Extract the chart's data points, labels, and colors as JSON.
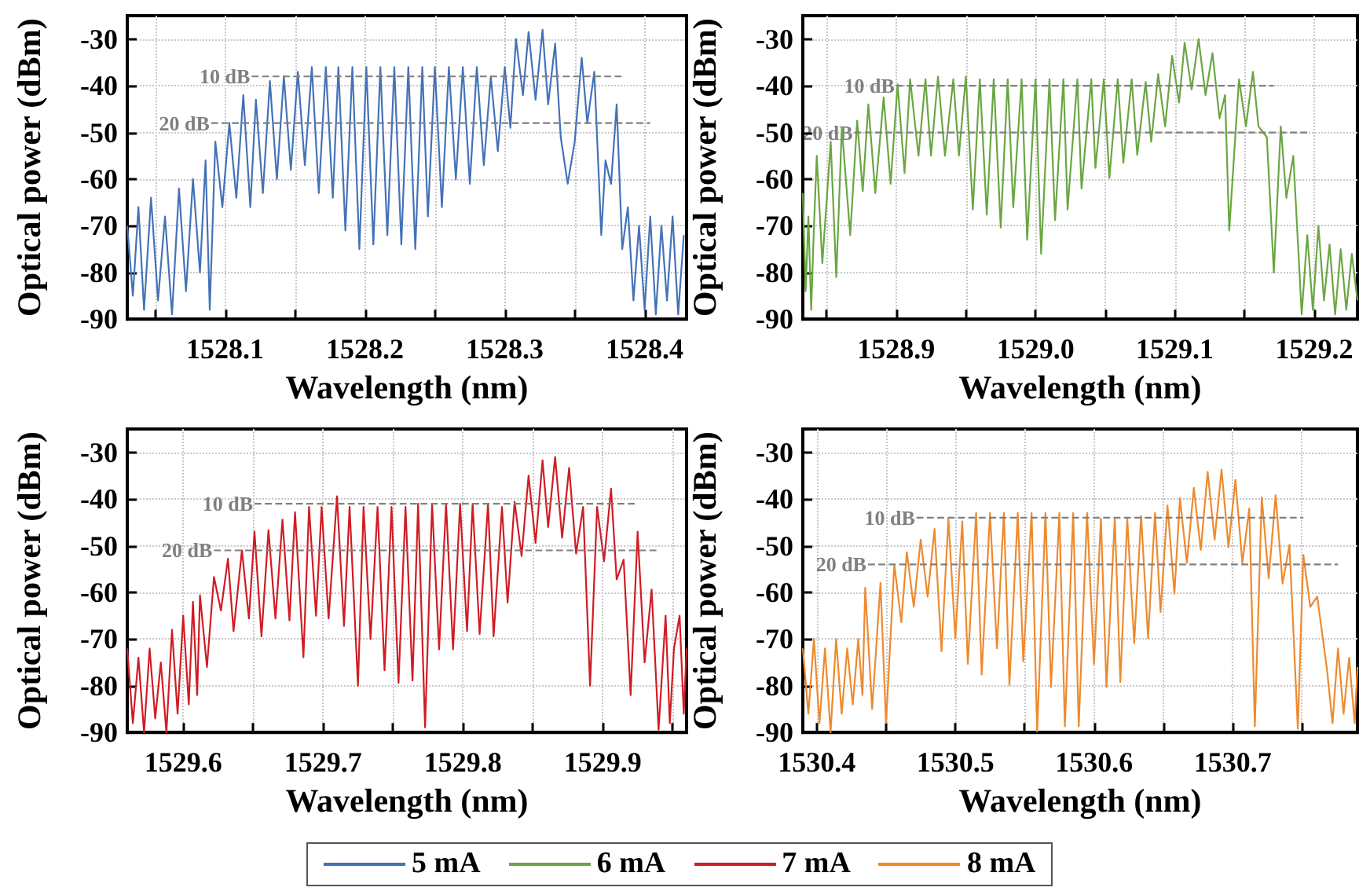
{
  "chart_data": [
    {
      "type": "line",
      "xlabel": "Wavelength (nm)",
      "ylabel": "Optical power (dBm)",
      "xlim": [
        1528.03,
        1528.43
      ],
      "xticks": [
        {
          "value": 1528.05,
          "label": null
        },
        1528.1,
        {
          "value": 1528.15,
          "label": null
        },
        1528.2,
        {
          "value": 1528.25,
          "label": null
        },
        1528.3,
        {
          "value": 1528.35,
          "label": null
        },
        1528.4
      ],
      "ylim": [
        -90,
        -25
      ],
      "yticks": [
        -90,
        -80,
        -70,
        -60,
        -50,
        -40,
        -30
      ],
      "grid": true,
      "legend": "bottom",
      "series": [
        {
          "name": "5 mA",
          "color": "#4472b8",
          "x": [
            1528.03,
            1528.034,
            1528.038,
            1528.042,
            1528.047,
            1528.052,
            1528.057,
            1528.062,
            1528.067,
            1528.072,
            1528.077,
            1528.082,
            1528.086,
            1528.089,
            1528.093,
            1528.098,
            1528.103,
            1528.108,
            1528.113,
            1528.118,
            1528.122,
            1528.127,
            1528.132,
            1528.137,
            1528.142,
            1528.147,
            1528.152,
            1528.157,
            1528.162,
            1528.167,
            1528.172,
            1528.177,
            1528.181,
            1528.186,
            1528.191,
            1528.196,
            1528.201,
            1528.206,
            1528.211,
            1528.216,
            1528.221,
            1528.226,
            1528.231,
            1528.236,
            1528.241,
            1528.245,
            1528.25,
            1528.255,
            1528.26,
            1528.265,
            1528.27,
            1528.275,
            1528.28,
            1528.285,
            1528.29,
            1528.295,
            1528.3,
            1528.304,
            1528.308,
            1528.313,
            1528.317,
            1528.322,
            1528.327,
            1528.331,
            1528.336,
            1528.34,
            1528.345,
            1528.35,
            1528.355,
            1528.359,
            1528.364,
            1528.369,
            1528.372,
            1528.376,
            1528.38,
            1528.384,
            1528.388,
            1528.392,
            1528.396,
            1528.4,
            1528.404,
            1528.408,
            1528.412,
            1528.416,
            1528.42,
            1528.424,
            1528.428
          ],
          "values": [
            -70,
            -85,
            -66,
            -88,
            -64,
            -86,
            -68,
            -89,
            -62,
            -84,
            -60,
            -80,
            -56,
            -88,
            -52,
            -66,
            -48,
            -64,
            -42,
            -66,
            -43,
            -63,
            -39,
            -60,
            -38,
            -58,
            -37,
            -57,
            -36,
            -63,
            -36,
            -64,
            -36,
            -71,
            -36,
            -75,
            -36,
            -74,
            -36,
            -72,
            -36,
            -74,
            -36,
            -75,
            -36,
            -68,
            -36,
            -66,
            -36,
            -60,
            -36,
            -61,
            -36,
            -57,
            -38,
            -54,
            -36,
            -49,
            -30,
            -42,
            -28.5,
            -43,
            -28,
            -44,
            -31,
            -51,
            -61,
            -52,
            -34,
            -48,
            -37,
            -72,
            -56,
            -61,
            -44,
            -75,
            -66,
            -86,
            -70,
            -88,
            -68,
            -89,
            -70,
            -86,
            -68,
            -89,
            -72
          ]
        },
        {
          "type": "line",
          "color": "#808080",
          "line_style": "dashed",
          "x": [
            1528.119,
            1528.385
          ],
          "values": [
            -38,
            -38
          ]
        },
        {
          "type": "line",
          "color": "#808080",
          "line_style": "dashed",
          "x": [
            1528.09,
            1528.404
          ],
          "values": [
            -48,
            -48
          ]
        }
      ],
      "annotations": [
        {
          "text": "10 dB",
          "x": 1528.119,
          "y": -38
        },
        {
          "text": "20 dB",
          "x": 1528.09,
          "y": -48
        }
      ]
    },
    {
      "type": "line",
      "xlabel": "Wavelength (nm)",
      "ylabel": "Optical power (dBm)",
      "xlim": [
        1528.833,
        1529.231
      ],
      "xticks": [
        {
          "value": 1528.85,
          "label": null
        },
        1528.9,
        {
          "value": 1528.95,
          "label": null
        },
        {
          "value": 1529,
          "label": "1529.0"
        },
        {
          "value": 1529.05,
          "label": null
        },
        1529.1,
        {
          "value": 1529.15,
          "label": null
        },
        1529.2
      ],
      "ylim": [
        -90,
        -25
      ],
      "yticks": [
        -90,
        -80,
        -70,
        -60,
        -50,
        -40,
        -30
      ],
      "grid": true,
      "legend": "bottom",
      "series": [
        {
          "name": "6 mA",
          "color": "#6aa642",
          "x": [
            1528.833,
            1528.835,
            1528.837,
            1528.839,
            1528.841,
            1528.843,
            1528.847,
            1528.853,
            1528.857,
            1528.861,
            1528.867,
            1528.872,
            1528.876,
            1528.88,
            1528.885,
            1528.891,
            1528.896,
            1528.901,
            1528.906,
            1528.91,
            1528.916,
            1528.921,
            1528.925,
            1528.93,
            1528.935,
            1528.941,
            1528.945,
            1528.95,
            1528.955,
            1528.96,
            1528.965,
            1528.97,
            1528.975,
            1528.98,
            1528.984,
            1528.99,
            1528.994,
            1529.0,
            1529.004,
            1529.01,
            1529.014,
            1529.02,
            1529.023,
            1529.03,
            1529.033,
            1529.04,
            1529.043,
            1529.049,
            1529.053,
            1529.059,
            1529.063,
            1529.069,
            1529.073,
            1529.079,
            1529.083,
            1529.088,
            1529.093,
            1529.098,
            1529.103,
            1529.107,
            1529.112,
            1529.117,
            1529.122,
            1529.127,
            1529.132,
            1529.136,
            1529.139,
            1529.146,
            1529.151,
            1529.156,
            1529.16,
            1529.166,
            1529.171,
            1529.176,
            1529.18,
            1529.185,
            1529.191,
            1529.195,
            1529.199,
            1529.203,
            1529.207,
            1529.211,
            1529.215,
            1529.219,
            1529.223,
            1529.227,
            1529.231
          ],
          "values": [
            -63,
            -84,
            -68,
            -88,
            -70,
            -55,
            -78,
            -52,
            -81,
            -49,
            -72,
            -47.5,
            -62.6,
            -44,
            -63,
            -42.5,
            -61,
            -39.7,
            -58.7,
            -38.6,
            -55,
            -38.6,
            -55,
            -38,
            -55,
            -38.6,
            -55,
            -38,
            -66.5,
            -38.6,
            -67.6,
            -38.6,
            -70.4,
            -38.6,
            -66,
            -38.6,
            -73,
            -38.6,
            -76,
            -38.6,
            -68.8,
            -38.6,
            -66.5,
            -38.6,
            -62,
            -38.6,
            -57.6,
            -38.6,
            -59.8,
            -38.6,
            -56.5,
            -38.6,
            -54.8,
            -39.2,
            -52,
            -37.5,
            -48.7,
            -33.6,
            -43.6,
            -30.8,
            -40.8,
            -30,
            -42,
            -33,
            -47,
            -42,
            -71,
            -38.6,
            -48.7,
            -37,
            -48.7,
            -51,
            -80,
            -48.7,
            -64,
            -55,
            -89,
            -72,
            -88,
            -70,
            -86,
            -74,
            -89,
            -75,
            -88,
            -76,
            -86
          ]
        },
        {
          "type": "line",
          "color": "#808080",
          "line_style": "dashed",
          "x": [
            1528.9,
            1529.171
          ],
          "values": [
            -40,
            -40
          ]
        },
        {
          "type": "line",
          "color": "#808080",
          "line_style": "dashed",
          "x": [
            1528.87,
            1529.196
          ],
          "values": [
            -50,
            -50
          ]
        }
      ],
      "annotations": [
        {
          "text": "10 dB",
          "x": 1528.9,
          "y": -40
        },
        {
          "text": "20 dB",
          "x": 1528.87,
          "y": -50
        }
      ]
    },
    {
      "type": "line",
      "xlabel": "Wavelength (nm)",
      "ylabel": "Optical power (dBm)",
      "xlim": [
        1529.56,
        1529.96
      ],
      "xticks": [
        1529.6,
        {
          "value": 1529.65,
          "label": null
        },
        1529.7,
        {
          "value": 1529.75,
          "label": null
        },
        1529.8,
        {
          "value": 1529.85,
          "label": null
        },
        1529.9,
        {
          "value": 1529.95,
          "label": null
        }
      ],
      "ylim": [
        -90,
        -25
      ],
      "yticks": [
        -90,
        -80,
        -70,
        -60,
        -50,
        -40,
        -30
      ],
      "grid": true,
      "legend": "bottom",
      "series": [
        {
          "name": "7 mA",
          "color": "#d01c24",
          "x": [
            1529.56,
            1529.564,
            1529.568,
            1529.572,
            1529.576,
            1529.58,
            1529.584,
            1529.588,
            1529.592,
            1529.596,
            1529.6,
            1529.604,
            1529.607,
            1529.61,
            1529.612,
            1529.617,
            1529.622,
            1529.627,
            1529.632,
            1529.636,
            1529.642,
            1529.647,
            1529.651,
            1529.656,
            1529.661,
            1529.666,
            1529.671,
            1529.676,
            1529.68,
            1529.686,
            1529.69,
            1529.695,
            1529.699,
            1529.704,
            1529.71,
            1529.715,
            1529.719,
            1529.725,
            1529.729,
            1529.734,
            1529.739,
            1529.744,
            1529.749,
            1529.754,
            1529.759,
            1529.764,
            1529.768,
            1529.773,
            1529.778,
            1529.783,
            1529.788,
            1529.793,
            1529.798,
            1529.803,
            1529.807,
            1529.812,
            1529.818,
            1529.822,
            1529.828,
            1529.832,
            1529.837,
            1529.842,
            1529.847,
            1529.852,
            1529.857,
            1529.861,
            1529.866,
            1529.871,
            1529.876,
            1529.881,
            1529.886,
            1529.891,
            1529.896,
            1529.901,
            1529.906,
            1529.91,
            1529.915,
            1529.92,
            1529.925,
            1529.93,
            1529.935,
            1529.94,
            1529.945,
            1529.948,
            1529.951,
            1529.955,
            1529.958,
            1529.96
          ],
          "values": [
            -72,
            -88,
            -74,
            -90,
            -72,
            -87,
            -75,
            -90,
            -68,
            -86,
            -65,
            -84,
            -62,
            -82,
            -60.6,
            -76,
            -56.7,
            -63.9,
            -52.8,
            -68.3,
            -51,
            -65.6,
            -47,
            -69.4,
            -46.7,
            -65.6,
            -44.4,
            -66,
            -42.8,
            -73.9,
            -41.7,
            -65,
            -41.7,
            -65.6,
            -39.4,
            -67.2,
            -41.7,
            -80,
            -41.7,
            -70,
            -41.7,
            -76.7,
            -41.7,
            -79.4,
            -41.7,
            -78.9,
            -41,
            -88.9,
            -41,
            -72.2,
            -41,
            -72.2,
            -41,
            -68.3,
            -41,
            -68.9,
            -41,
            -69.4,
            -41.7,
            -62.2,
            -40.6,
            -52.2,
            -35,
            -49.4,
            -31.7,
            -46,
            -31,
            -48.3,
            -33.3,
            -51.7,
            -41.7,
            -80,
            -41.7,
            -53.3,
            -37.8,
            -57.2,
            -53,
            -82,
            -47,
            -75,
            -59.4,
            -89.4,
            -65,
            -88,
            -72,
            -65,
            -86,
            -72
          ]
        },
        {
          "type": "line",
          "color": "#808080",
          "line_style": "dashed",
          "x": [
            1529.651,
            1529.925
          ],
          "values": [
            -41,
            -41
          ]
        },
        {
          "type": "line",
          "color": "#808080",
          "line_style": "dashed",
          "x": [
            1529.622,
            1529.94
          ],
          "values": [
            -51,
            -51
          ]
        }
      ],
      "annotations": [
        {
          "text": "10 dB",
          "x": 1529.651,
          "y": -41
        },
        {
          "text": "20 dB",
          "x": 1529.622,
          "y": -51
        }
      ]
    },
    {
      "type": "line",
      "xlabel": "Wavelength (nm)",
      "ylabel": "Optical power (dBm)",
      "xlim": [
        1530.39,
        1530.79
      ],
      "xticks": [
        1530.4,
        {
          "value": 1530.45,
          "label": null
        },
        1530.5,
        {
          "value": 1530.55,
          "label": null
        },
        1530.6,
        {
          "value": 1530.65,
          "label": null
        },
        1530.7,
        {
          "value": 1530.75,
          "label": null
        }
      ],
      "ylim": [
        -90,
        -25
      ],
      "yticks": [
        -90,
        -80,
        -70,
        -60,
        -50,
        -40,
        -30
      ],
      "grid": true,
      "legend": "bottom",
      "series": [
        {
          "name": "8 mA",
          "color": "#ee8a2e",
          "x": [
            1530.39,
            1530.394,
            1530.398,
            1530.402,
            1530.406,
            1530.41,
            1530.414,
            1530.418,
            1530.422,
            1530.426,
            1530.43,
            1530.433,
            1530.435,
            1530.44,
            1530.446,
            1530.45,
            1530.456,
            1530.461,
            1530.465,
            1530.47,
            1530.475,
            1530.48,
            1530.485,
            1530.49,
            1530.495,
            1530.5,
            1530.505,
            1530.509,
            1530.515,
            1530.519,
            1530.525,
            1530.53,
            1530.535,
            1530.539,
            1530.545,
            1530.549,
            1530.555,
            1530.559,
            1530.565,
            1530.569,
            1530.575,
            1530.579,
            1530.585,
            1530.589,
            1530.595,
            1530.6,
            1530.605,
            1530.609,
            1530.615,
            1530.619,
            1530.624,
            1530.629,
            1530.634,
            1530.639,
            1530.644,
            1530.648,
            1530.653,
            1530.658,
            1530.662,
            1530.667,
            1530.672,
            1530.677,
            1530.682,
            1530.687,
            1530.692,
            1530.697,
            1530.702,
            1530.707,
            1530.712,
            1530.716,
            1530.721,
            1530.726,
            1530.731,
            1530.736,
            1530.741,
            1530.747,
            1530.751,
            1530.756,
            1530.761,
            1530.768,
            1530.772,
            1530.776,
            1530.78,
            1530.784,
            1530.788,
            1530.79
          ],
          "values": [
            -72,
            -86,
            -70,
            -88,
            -72,
            -90,
            -70,
            -86,
            -72,
            -84,
            -70,
            -82,
            -59,
            -85,
            -58,
            -88,
            -54,
            -66.4,
            -51.4,
            -63.1,
            -48.7,
            -60.9,
            -46.4,
            -72.6,
            -44.2,
            -69.8,
            -44.8,
            -75.3,
            -43,
            -77.6,
            -43,
            -72,
            -43,
            -79.8,
            -43,
            -74.8,
            -43,
            -89.8,
            -43,
            -80.3,
            -43,
            -88.7,
            -43,
            -88.7,
            -43,
            -75.3,
            -44.2,
            -80.3,
            -44.2,
            -79.2,
            -44.2,
            -70.9,
            -43.6,
            -69.8,
            -43,
            -64.2,
            -41.4,
            -60.3,
            -39.8,
            -53.7,
            -37.6,
            -50.9,
            -34.2,
            -48.7,
            -33.7,
            -50.3,
            -35.9,
            -53.7,
            -42,
            -88.7,
            -39.6,
            -57,
            -39.2,
            -58.1,
            -49.8,
            -89.2,
            -52,
            -63.1,
            -60.9,
            -76.4,
            -88,
            -72,
            -86,
            -74,
            -88,
            -76
          ]
        },
        {
          "type": "line",
          "color": "#808080",
          "line_style": "dashed",
          "x": [
            1530.472,
            1530.751
          ],
          "values": [
            -44,
            -44
          ]
        },
        {
          "type": "line",
          "color": "#808080",
          "line_style": "dashed",
          "x": [
            1530.437,
            1530.776
          ],
          "values": [
            -54,
            -54
          ]
        }
      ],
      "annotations": [
        {
          "text": "10 dB",
          "x": 1530.472,
          "y": -44
        },
        {
          "text": "20 dB",
          "x": 1530.437,
          "y": -54
        }
      ]
    }
  ]
}
